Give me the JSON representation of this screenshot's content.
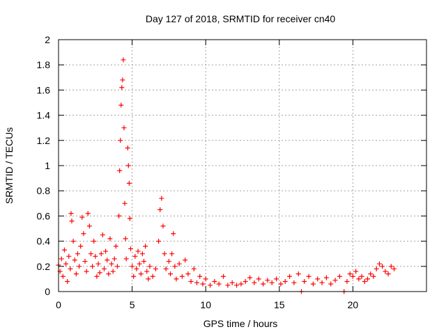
{
  "chart_data": {
    "type": "scatter",
    "title": "Day 127 of 2018, SRMTID for receiver cn40",
    "xlabel": "GPS time / hours",
    "ylabel": "SRMTID / TECUs",
    "xlim": [
      0,
      25
    ],
    "ylim": [
      0,
      2
    ],
    "x_ticks": [
      0,
      5,
      10,
      15,
      20
    ],
    "x_tick_labels": [
      "0",
      "5",
      "10",
      "15",
      "20"
    ],
    "y_ticks": [
      0,
      0.2,
      0.4,
      0.6,
      0.8,
      1,
      1.2,
      1.4,
      1.6,
      1.8,
      2
    ],
    "y_tick_labels": [
      "0",
      "0.2",
      "0.4",
      "0.6",
      "0.8",
      "1",
      "1.2",
      "1.4",
      "1.6",
      "1.8",
      "2"
    ],
    "grid": true,
    "marker": "+",
    "color": "#ff0000",
    "series": [
      {
        "name": "SRMTID",
        "points": [
          [
            0.0,
            0.21
          ],
          [
            0.1,
            0.16
          ],
          [
            0.2,
            0.26
          ],
          [
            0.3,
            0.12
          ],
          [
            0.4,
            0.33
          ],
          [
            0.5,
            0.22
          ],
          [
            0.6,
            0.08
          ],
          [
            0.7,
            0.28
          ],
          [
            0.8,
            0.18
          ],
          [
            0.85,
            0.62
          ],
          [
            0.9,
            0.56
          ],
          [
            1.0,
            0.4
          ],
          [
            1.1,
            0.25
          ],
          [
            1.2,
            0.14
          ],
          [
            1.3,
            0.3
          ],
          [
            1.4,
            0.2
          ],
          [
            1.5,
            0.36
          ],
          [
            1.6,
            0.59
          ],
          [
            1.7,
            0.46
          ],
          [
            1.8,
            0.24
          ],
          [
            1.9,
            0.16
          ],
          [
            2.0,
            0.62
          ],
          [
            2.1,
            0.52
          ],
          [
            2.2,
            0.3
          ],
          [
            2.3,
            0.2
          ],
          [
            2.4,
            0.4
          ],
          [
            2.5,
            0.28
          ],
          [
            2.6,
            0.12
          ],
          [
            2.7,
            0.22
          ],
          [
            2.8,
            0.15
          ],
          [
            2.9,
            0.3
          ],
          [
            3.0,
            0.45
          ],
          [
            3.1,
            0.18
          ],
          [
            3.2,
            0.32
          ],
          [
            3.3,
            0.25
          ],
          [
            3.4,
            0.14
          ],
          [
            3.5,
            0.42
          ],
          [
            3.6,
            0.22
          ],
          [
            3.7,
            0.16
          ],
          [
            3.8,
            0.26
          ],
          [
            3.9,
            0.36
          ],
          [
            4.0,
            0.2
          ],
          [
            4.1,
            0.6
          ],
          [
            4.15,
            0.96
          ],
          [
            4.2,
            1.2
          ],
          [
            4.25,
            1.48
          ],
          [
            4.3,
            1.62
          ],
          [
            4.35,
            1.68
          ],
          [
            4.4,
            1.84
          ],
          [
            4.45,
            1.3
          ],
          [
            4.5,
            0.7
          ],
          [
            4.55,
            0.42
          ],
          [
            4.6,
            0.26
          ],
          [
            4.7,
            1.14
          ],
          [
            4.75,
            1.0
          ],
          [
            4.8,
            0.86
          ],
          [
            4.85,
            0.58
          ],
          [
            4.9,
            0.34
          ],
          [
            5.0,
            0.2
          ],
          [
            5.1,
            0.12
          ],
          [
            5.2,
            0.28
          ],
          [
            5.3,
            0.18
          ],
          [
            5.4,
            0.32
          ],
          [
            5.5,
            0.22
          ],
          [
            5.6,
            0.14
          ],
          [
            5.7,
            0.3
          ],
          [
            5.8,
            0.24
          ],
          [
            5.9,
            0.36
          ],
          [
            6.0,
            0.16
          ],
          [
            6.1,
            0.1
          ],
          [
            6.2,
            0.2
          ],
          [
            6.4,
            0.12
          ],
          [
            6.6,
            0.18
          ],
          [
            6.8,
            0.4
          ],
          [
            6.9,
            0.65
          ],
          [
            7.0,
            0.74
          ],
          [
            7.1,
            0.52
          ],
          [
            7.2,
            0.3
          ],
          [
            7.3,
            0.18
          ],
          [
            7.5,
            0.24
          ],
          [
            7.6,
            0.14
          ],
          [
            7.7,
            0.3
          ],
          [
            7.8,
            0.46
          ],
          [
            7.9,
            0.2
          ],
          [
            8.0,
            0.1
          ],
          [
            8.2,
            0.22
          ],
          [
            8.4,
            0.12
          ],
          [
            8.6,
            0.25
          ],
          [
            8.8,
            0.14
          ],
          [
            9.0,
            0.08
          ],
          [
            9.2,
            0.18
          ],
          [
            9.4,
            0.07
          ],
          [
            9.6,
            0.12
          ],
          [
            9.8,
            0.06
          ],
          [
            10.0,
            0.1
          ],
          [
            10.3,
            0.05
          ],
          [
            10.6,
            0.08
          ],
          [
            10.9,
            0.06
          ],
          [
            11.2,
            0.12
          ],
          [
            11.5,
            0.05
          ],
          [
            11.8,
            0.07
          ],
          [
            12.1,
            0.05
          ],
          [
            12.4,
            0.06
          ],
          [
            12.7,
            0.08
          ],
          [
            13.0,
            0.11
          ],
          [
            13.3,
            0.07
          ],
          [
            13.6,
            0.1
          ],
          [
            13.9,
            0.06
          ],
          [
            14.2,
            0.09
          ],
          [
            14.5,
            0.07
          ],
          [
            14.8,
            0.1
          ],
          [
            15.1,
            0.06
          ],
          [
            15.4,
            0.08
          ],
          [
            15.7,
            0.12
          ],
          [
            16.0,
            0.07
          ],
          [
            16.3,
            0.14
          ],
          [
            16.5,
            0.0
          ],
          [
            16.7,
            0.08
          ],
          [
            17.0,
            0.12
          ],
          [
            17.3,
            0.06
          ],
          [
            17.6,
            0.1
          ],
          [
            17.9,
            0.07
          ],
          [
            18.2,
            0.11
          ],
          [
            18.5,
            0.06
          ],
          [
            18.8,
            0.09
          ],
          [
            19.1,
            0.12
          ],
          [
            19.4,
            0.0
          ],
          [
            19.6,
            0.08
          ],
          [
            19.8,
            0.14
          ],
          [
            20.0,
            0.12
          ],
          [
            20.2,
            0.16
          ],
          [
            20.4,
            0.1
          ],
          [
            20.6,
            0.12
          ],
          [
            20.8,
            0.08
          ],
          [
            21.0,
            0.1
          ],
          [
            21.2,
            0.14
          ],
          [
            21.4,
            0.12
          ],
          [
            21.6,
            0.18
          ],
          [
            21.8,
            0.22
          ],
          [
            22.0,
            0.2
          ],
          [
            22.2,
            0.16
          ],
          [
            22.4,
            0.14
          ],
          [
            22.6,
            0.2
          ],
          [
            22.8,
            0.18
          ]
        ]
      }
    ]
  }
}
